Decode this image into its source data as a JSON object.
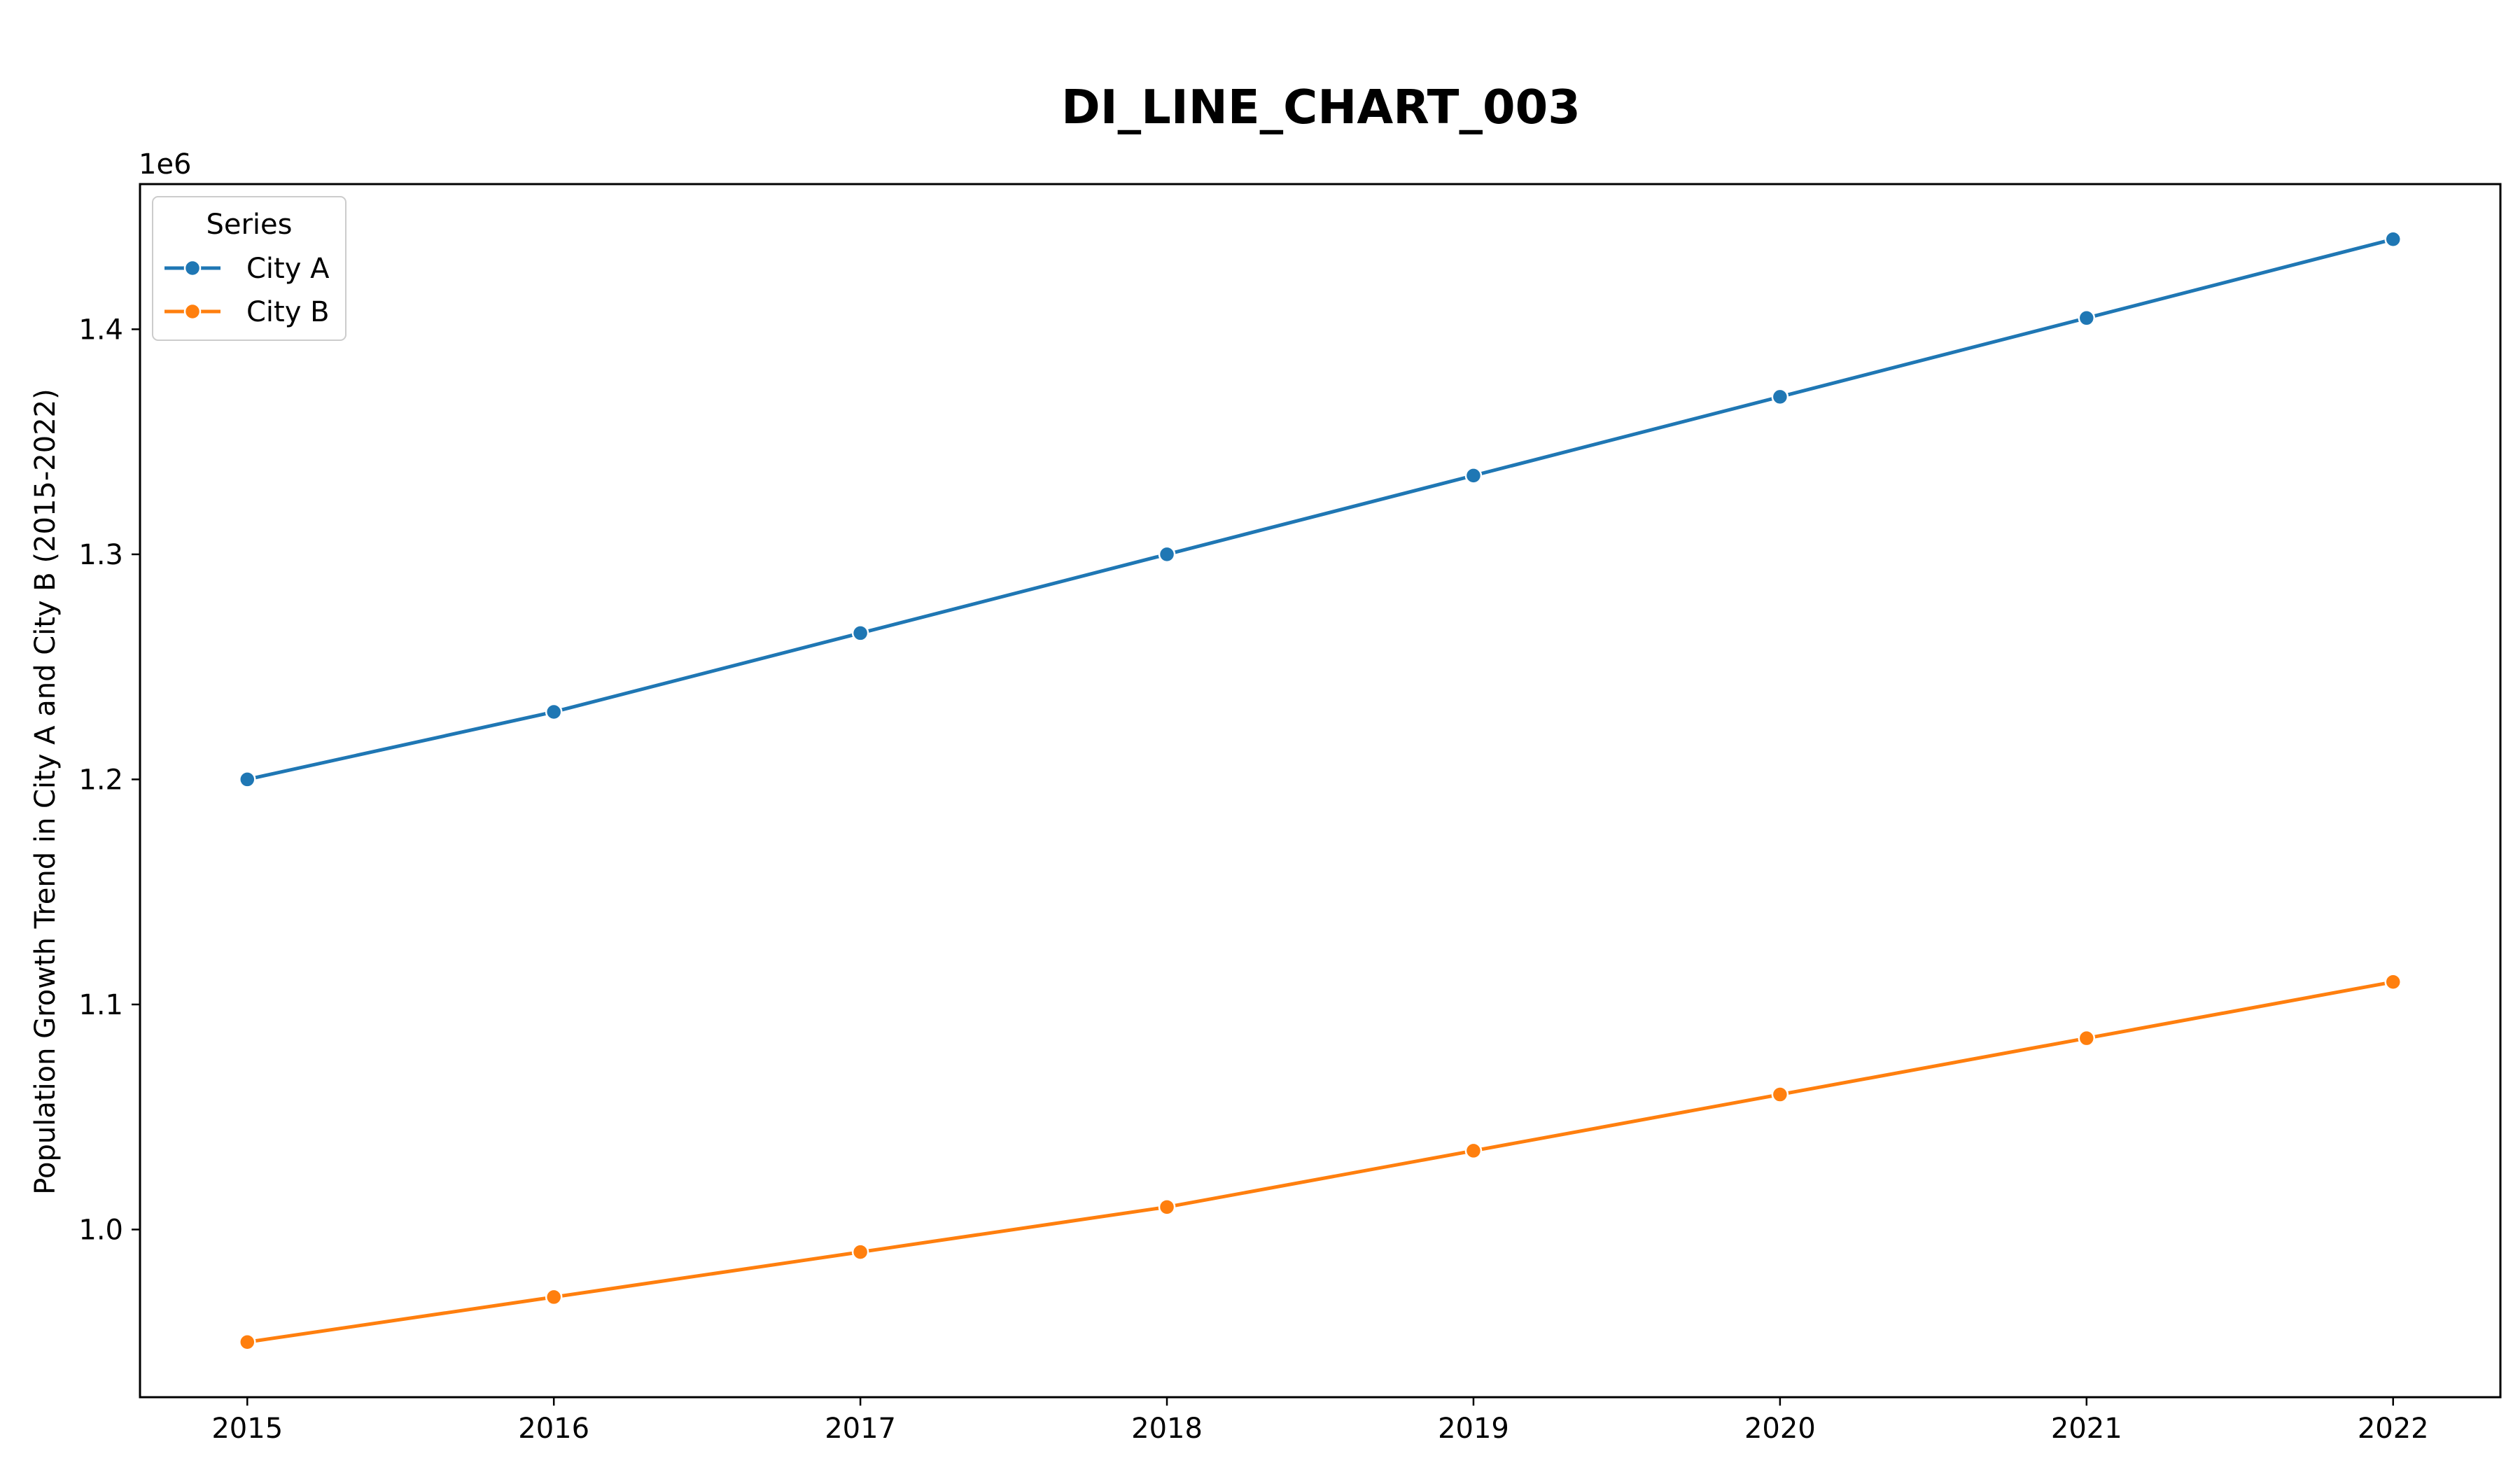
{
  "chart_data": {
    "type": "line",
    "title": "DI_LINE_CHART_003",
    "xlabel": "",
    "ylabel": "Population Growth Trend in City A and City B (2015-2022)",
    "y_offset_label": "1e6",
    "x": [
      2015,
      2016,
      2017,
      2018,
      2019,
      2020,
      2021,
      2022
    ],
    "x_tick_labels": [
      "2015",
      "2016",
      "2017",
      "2018",
      "2019",
      "2020",
      "2021",
      "2022"
    ],
    "y_ticks": [
      1.0,
      1.1,
      1.2,
      1.3,
      1.4
    ],
    "y_tick_labels": [
      "1.0",
      "1.1",
      "1.2",
      "1.3",
      "1.4"
    ],
    "xlim": [
      2014.65,
      2022.35
    ],
    "ylim": [
      0.9255,
      1.4645
    ],
    "y_scale": 1000000,
    "series": [
      {
        "name": "City A",
        "color": "#1f77b4",
        "values": [
          1200000,
          1230000,
          1265000,
          1300000,
          1335000,
          1370000,
          1405000,
          1440000
        ]
      },
      {
        "name": "City B",
        "color": "#ff7f0e",
        "values": [
          950000,
          970000,
          990000,
          1010000,
          1035000,
          1060000,
          1085000,
          1110000
        ]
      }
    ],
    "legend": {
      "title": "Series",
      "position": "top-left"
    },
    "grid": false,
    "markers": "circle"
  }
}
